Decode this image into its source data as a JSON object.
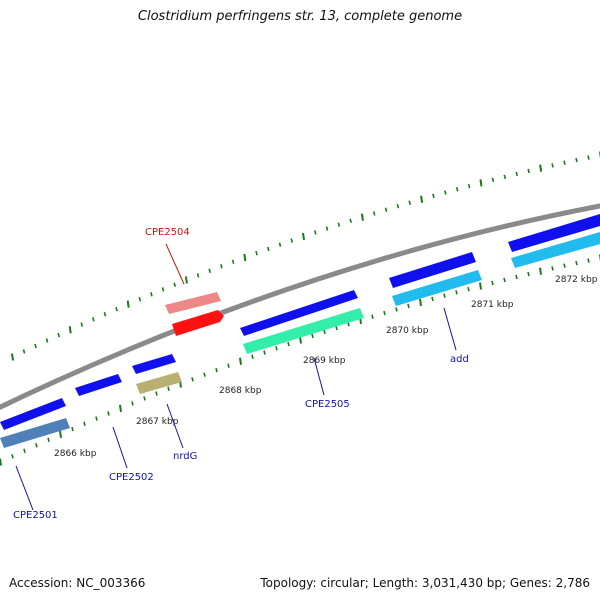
{
  "title": "Clostridium perfringens str. 13, complete genome",
  "footer": {
    "accession": "Accession: NC_003366",
    "stats": "Topology: circular; Length: 3,031,430 bp; Genes: 2,786"
  },
  "colors": {
    "backbone": "#8a8a8a",
    "tick": "#1a7a1a",
    "gene_label": "#1111aa",
    "highlight_label": "#cc1111"
  },
  "scale": {
    "unit": "kbp",
    "labels": [
      "2866 kbp",
      "2867 kbp",
      "2868 kbp",
      "2869 kbp",
      "2870 kbp",
      "2871 kbp",
      "2872 kbp"
    ]
  },
  "genes": [
    {
      "label": "CPE2501",
      "color": "#4f81b8"
    },
    {
      "label": "CPE2502",
      "color": "#1010ee"
    },
    {
      "label": "nrdG",
      "color": "#b8b070"
    },
    {
      "label": "CPE2504",
      "color": "#ee8888",
      "highlight": true
    },
    {
      "label": "CPE2505",
      "color": "#33eeaa"
    },
    {
      "label": "add",
      "color": "#22bbee"
    }
  ]
}
